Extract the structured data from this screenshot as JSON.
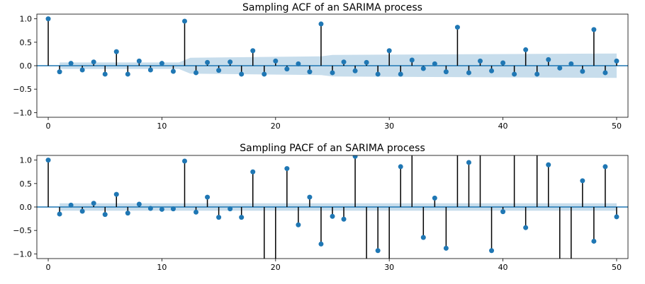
{
  "chart_data": [
    {
      "type": "stem",
      "title": "Sampling ACF of an SARIMA process",
      "xlim": [
        -1,
        51
      ],
      "ylim": [
        -1.1,
        1.1
      ],
      "xticks": [
        0,
        10,
        20,
        30,
        40,
        50
      ],
      "xtick_labels": [
        "0",
        "10",
        "20",
        "30",
        "40",
        "50"
      ],
      "yticks": [
        1.0,
        0.5,
        0.0,
        -0.5,
        -1.0
      ],
      "ytick_labels": [
        "1.0",
        "0.5",
        "0.0",
        "−0.5",
        "−1.0"
      ],
      "lags": [
        0,
        1,
        2,
        3,
        4,
        5,
        6,
        7,
        8,
        9,
        10,
        11,
        12,
        13,
        14,
        15,
        16,
        17,
        18,
        19,
        20,
        21,
        22,
        23,
        24,
        25,
        26,
        27,
        28,
        29,
        30,
        31,
        32,
        33,
        34,
        35,
        36,
        37,
        38,
        39,
        40,
        41,
        42,
        43,
        44,
        45,
        46,
        47,
        48,
        49,
        50
      ],
      "values": [
        1.0,
        -0.13,
        0.05,
        -0.09,
        0.08,
        -0.18,
        0.3,
        -0.18,
        0.1,
        -0.09,
        0.05,
        -0.12,
        0.95,
        -0.15,
        0.07,
        -0.1,
        0.08,
        -0.18,
        0.32,
        -0.18,
        0.1,
        -0.07,
        0.04,
        -0.13,
        0.89,
        -0.15,
        0.08,
        -0.11,
        0.07,
        -0.18,
        0.32,
        -0.18,
        0.12,
        -0.06,
        0.04,
        -0.13,
        0.82,
        -0.15,
        0.1,
        -0.11,
        0.06,
        -0.18,
        0.34,
        -0.18,
        0.13,
        -0.05,
        0.04,
        -0.12,
        0.77,
        -0.15,
        0.1
      ],
      "confint_band": {
        "lags": [
          1,
          11.5,
          12.5,
          24,
          25,
          50
        ],
        "half_width": [
          0.07,
          0.07,
          0.17,
          0.2,
          0.23,
          0.26
        ]
      }
    },
    {
      "type": "stem",
      "title": "Sampling PACF of an SARIMA process",
      "xlim": [
        -1,
        51
      ],
      "ylim": [
        -1.1,
        1.1
      ],
      "xticks": [
        0,
        10,
        20,
        30,
        40,
        50
      ],
      "xtick_labels": [
        "0",
        "10",
        "20",
        "30",
        "40",
        "50"
      ],
      "yticks": [
        1.0,
        0.5,
        0.0,
        -0.5,
        -1.0
      ],
      "ytick_labels": [
        "1.0",
        "0.5",
        "0.0",
        "−0.5",
        "−1.0"
      ],
      "lags": [
        0,
        1,
        2,
        3,
        4,
        5,
        6,
        7,
        8,
        9,
        10,
        11,
        12,
        13,
        14,
        15,
        16,
        17,
        18,
        19,
        20,
        21,
        22,
        23,
        24,
        25,
        26,
        27,
        28,
        29,
        30,
        31,
        32,
        33,
        34,
        35,
        36,
        37,
        38,
        39,
        40,
        41,
        42,
        43,
        44,
        45,
        46,
        47,
        48,
        49,
        50
      ],
      "values": [
        1.0,
        -0.15,
        0.04,
        -0.09,
        0.08,
        -0.16,
        0.27,
        -0.13,
        0.06,
        -0.03,
        -0.05,
        -0.04,
        0.98,
        -0.11,
        0.21,
        -0.22,
        -0.04,
        -0.22,
        0.75,
        -1.5,
        -1.5,
        0.82,
        -0.38,
        0.21,
        -0.79,
        -0.2,
        -0.26,
        1.08,
        -1.5,
        -0.93,
        -1.5,
        0.86,
        1.5,
        -0.65,
        0.19,
        -0.88,
        1.5,
        0.95,
        1.5,
        -0.93,
        -0.1,
        1.5,
        -0.44,
        1.5,
        0.9,
        -1.5,
        -1.5,
        0.56,
        -0.73,
        0.86,
        -0.21
      ],
      "confint_band": {
        "lags": [
          1,
          50
        ],
        "half_width": [
          0.08,
          0.08
        ]
      }
    }
  ]
}
